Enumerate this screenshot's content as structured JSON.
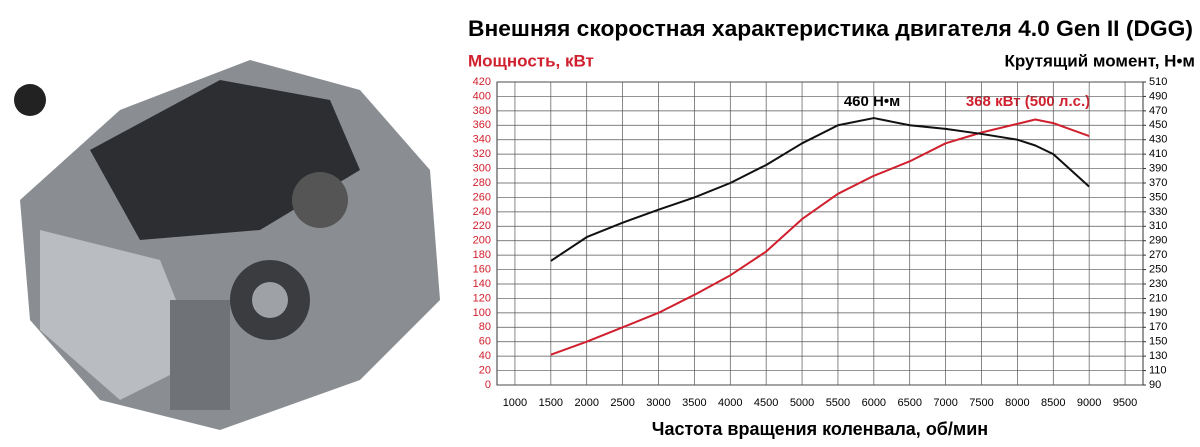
{
  "chart_data": {
    "type": "line",
    "title": "Внешняя скоростная характеристика двигателя 4.0 Gen II (DGG)",
    "ylabel": "Мощность, кВт",
    "y2label": "Крутящий момент, Н•м",
    "xlabel": "Частота вращения коленвала, об/мин",
    "annotations": [
      "460 Н•м",
      "368 кВт (500 л.с.)"
    ],
    "x": [
      1500,
      2000,
      2500,
      3000,
      3500,
      4000,
      4500,
      5000,
      5500,
      6000,
      6500,
      7000,
      7500,
      8000,
      8250,
      8500,
      9000
    ],
    "series": [
      {
        "color": "#d0202e",
        "values": [
          42,
          60,
          80,
          100,
          125,
          152,
          185,
          230,
          265,
          290,
          310,
          335,
          350,
          362,
          368,
          363,
          345
        ]
      },
      {
        "color": "#111111",
        "axis": "y2",
        "values": [
          262,
          295,
          315,
          333,
          350,
          370,
          395,
          425,
          450,
          460,
          450,
          445,
          438,
          430,
          422,
          410,
          365
        ]
      }
    ],
    "xlim": [
      750,
      9750
    ],
    "xticks": [
      1000,
      1500,
      2000,
      2500,
      3000,
      3500,
      4000,
      4500,
      5000,
      5500,
      6000,
      6500,
      7000,
      7500,
      8000,
      8500,
      9000,
      9500
    ],
    "ylim": [
      0,
      420
    ],
    "yticks": [
      0,
      20,
      40,
      60,
      80,
      100,
      120,
      140,
      160,
      180,
      200,
      220,
      240,
      260,
      280,
      300,
      320,
      340,
      360,
      380,
      400,
      420
    ],
    "y2lim": [
      90,
      510
    ],
    "y2ticks": [
      90,
      110,
      130,
      150,
      170,
      190,
      210,
      230,
      250,
      270,
      290,
      310,
      330,
      350,
      370,
      390,
      410,
      430,
      450,
      470,
      490,
      510
    ],
    "grid": true
  }
}
